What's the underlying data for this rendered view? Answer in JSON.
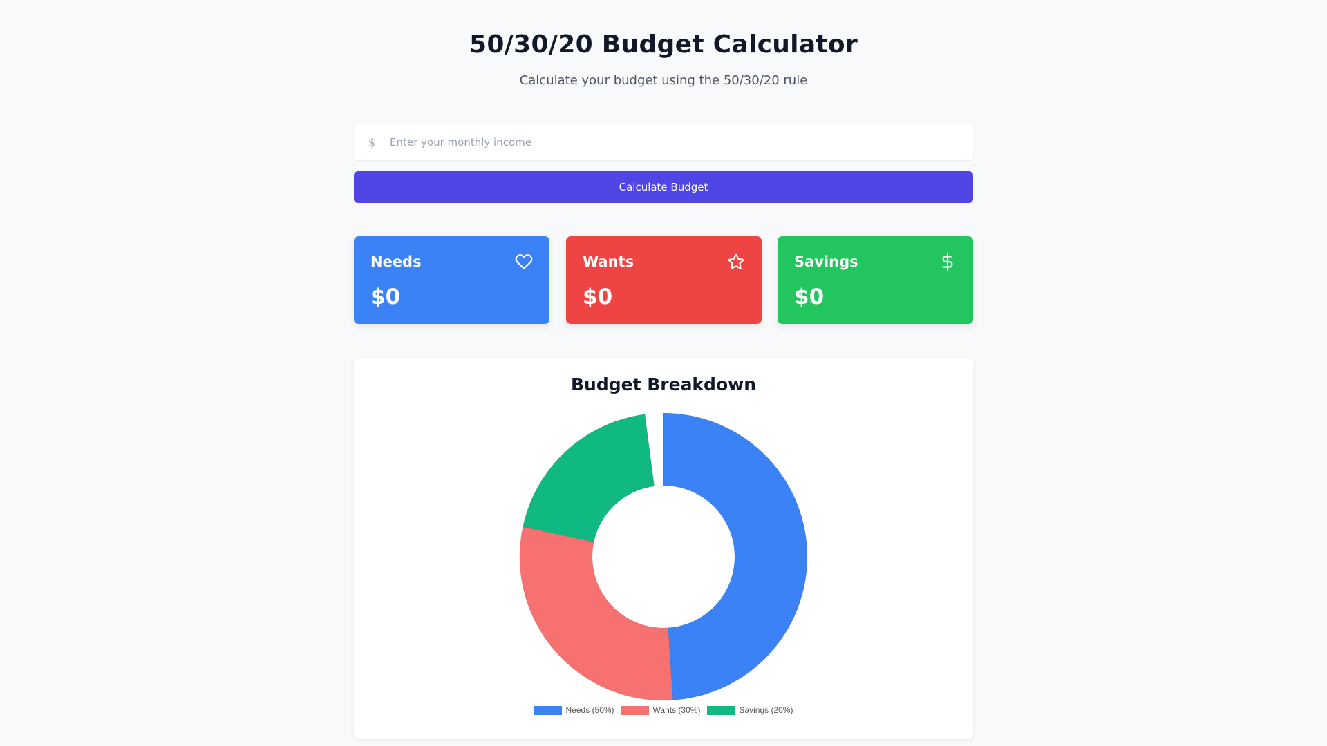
{
  "header": {
    "title": "50/30/20 Budget Calculator",
    "subtitle": "Calculate your budget using the 50/30/20 rule"
  },
  "income": {
    "prefix": "$",
    "placeholder": "Enter your monthly income",
    "value": ""
  },
  "calculate_button": {
    "label": "Calculate Budget",
    "color": "#4f46e5"
  },
  "cards": {
    "needs": {
      "label": "Needs",
      "value": "$0",
      "icon": "heart-icon",
      "color": "#3b82f6"
    },
    "wants": {
      "label": "Wants",
      "value": "$0",
      "icon": "star-icon",
      "color": "#ef4444"
    },
    "savings": {
      "label": "Savings",
      "value": "$0",
      "icon": "dollar-icon",
      "color": "#22c55e"
    }
  },
  "chart_panel": {
    "title": "Budget Breakdown"
  },
  "chart_data": {
    "type": "pie",
    "title": "Budget Breakdown",
    "donut": true,
    "legend_position": "bottom",
    "categories": [
      "Needs (50%)",
      "Wants (30%)",
      "Savings (20%)"
    ],
    "values": [
      50,
      30,
      20
    ],
    "colors": [
      "#3b82f6",
      "#f87171",
      "#10b981"
    ]
  }
}
